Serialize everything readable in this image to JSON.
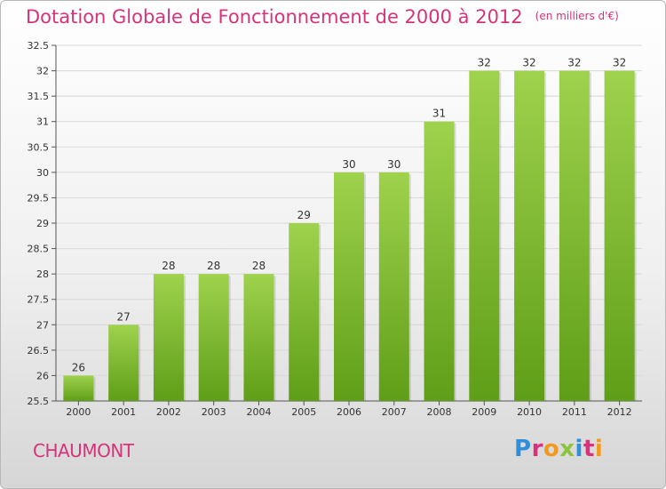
{
  "title": "Dotation Globale de Fonctionnement de 2000 à 2012",
  "unit_note": "(en milliers d'€)",
  "city": "CHAUMONT",
  "logo": {
    "text": "Proxiti"
  },
  "colors": {
    "accent": "#d6337a",
    "bar_top": "#9fd24d",
    "bar_bottom": "#5f9e18",
    "grid": "#d8d8d8",
    "axis": "#555555"
  },
  "chart_data": {
    "type": "bar",
    "title": "Dotation Globale de Fonctionnement de 2000 à 2012",
    "ylabel": "(en milliers d'€)",
    "xlabel": "",
    "categories": [
      "2000",
      "2001",
      "2002",
      "2003",
      "2004",
      "2005",
      "2006",
      "2007",
      "2008",
      "2009",
      "2010",
      "2011",
      "2012"
    ],
    "values": [
      26,
      27,
      28,
      28,
      28,
      29,
      30,
      30,
      31,
      32,
      32,
      32,
      32
    ],
    "data_labels": [
      "26",
      "27",
      "28",
      "28",
      "28",
      "29",
      "30",
      "30",
      "31",
      "32",
      "32",
      "32",
      "32"
    ],
    "ylim": [
      25.5,
      32.5
    ],
    "yticks": [
      25.5,
      26,
      26.5,
      27,
      27.5,
      28,
      28.5,
      29,
      29.5,
      30,
      30.5,
      31,
      31.5,
      32,
      32.5
    ],
    "grid": true,
    "legend": "none"
  }
}
